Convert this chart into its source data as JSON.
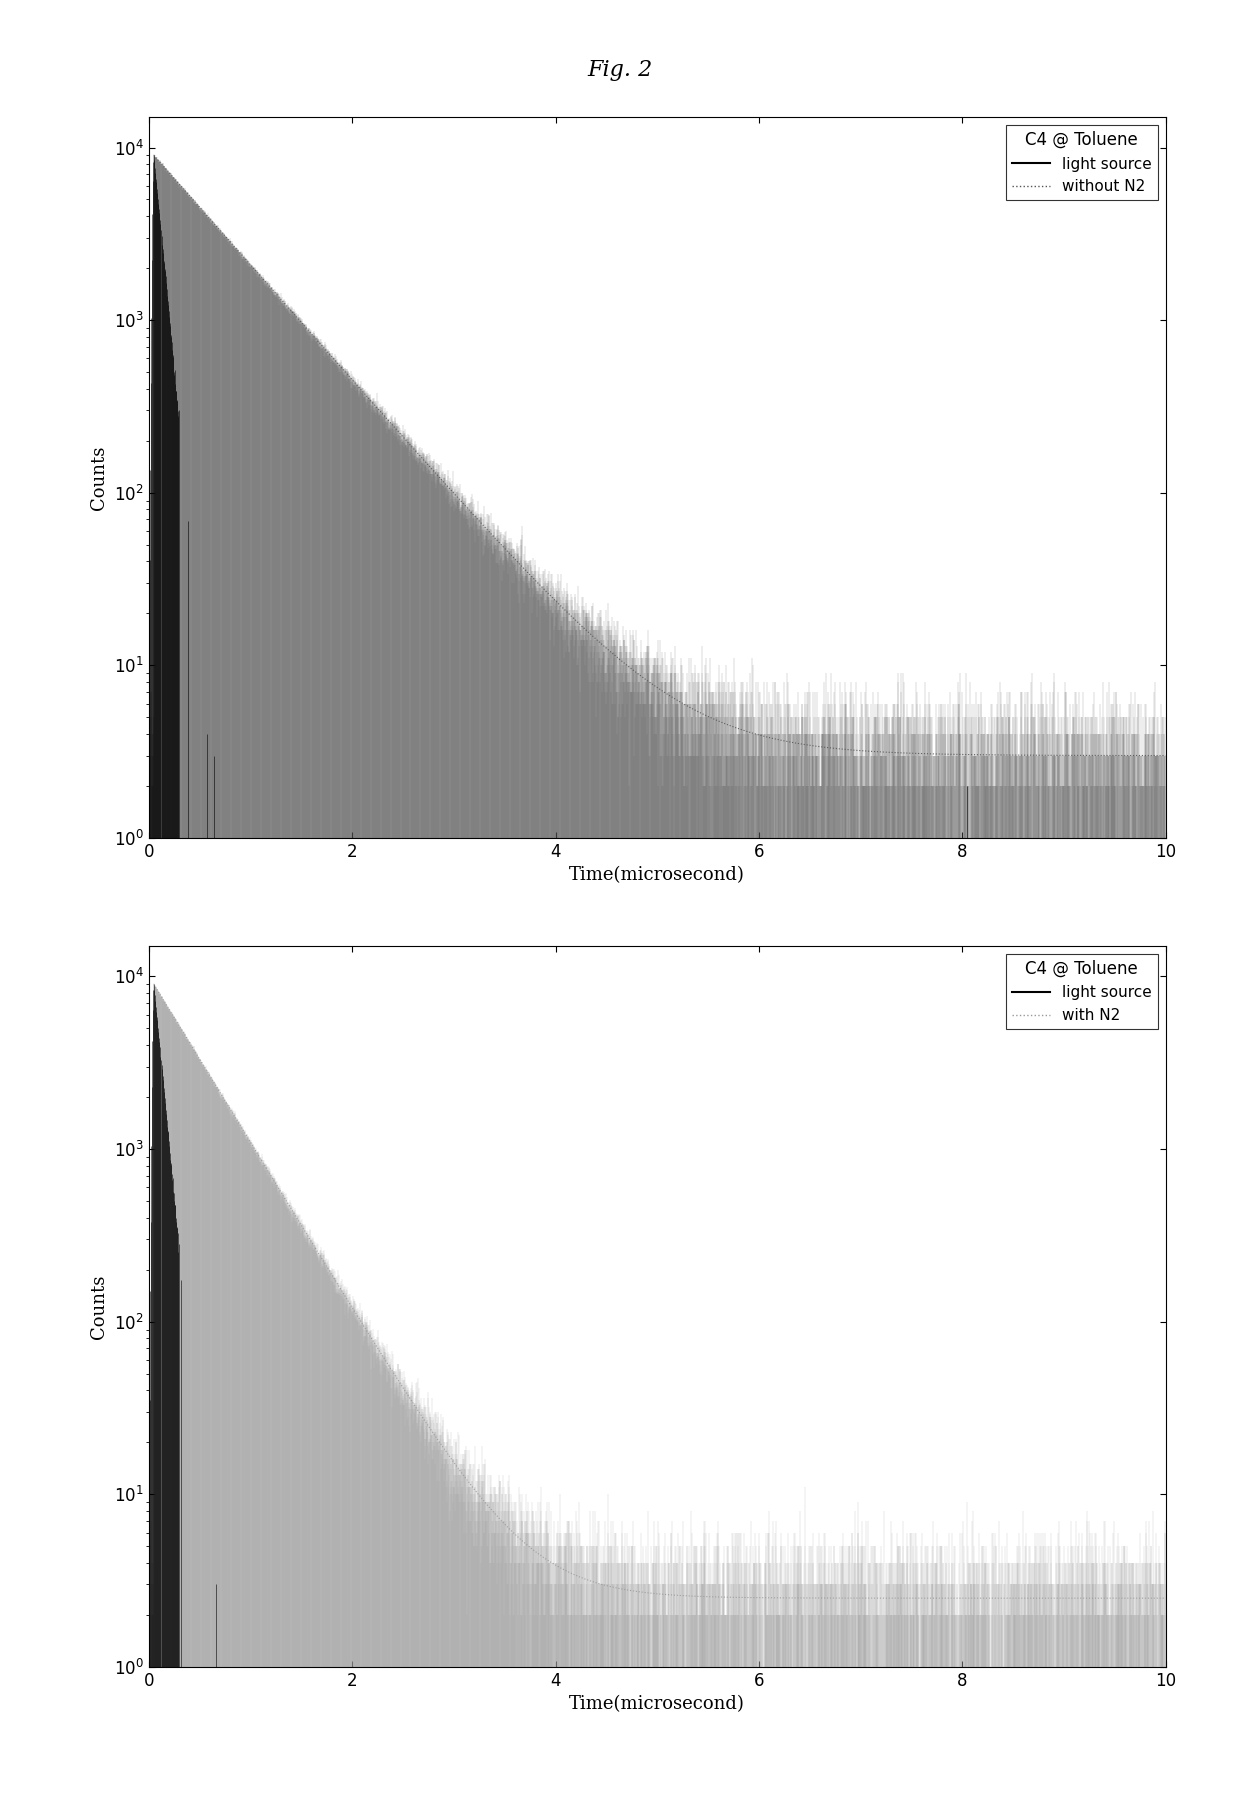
{
  "fig_title": "Fig. 2",
  "fig_title_fontsize": 16,
  "subplot1": {
    "title": "C4 @ Toluene",
    "legend_line1": "light source",
    "legend_line2": "without N2",
    "xlabel": "Time(microsecond)",
    "ylabel": "Counts",
    "xlim": [
      0,
      10
    ],
    "light_source_amplitude": 9000,
    "light_source_tau": 0.07,
    "signal_amplitude": 9000,
    "signal_tau": 0.65,
    "noise_floor": 3.0
  },
  "subplot2": {
    "title": "C4 @ Toluene",
    "legend_line1": "light source",
    "legend_line2": "with N2",
    "xlabel": "Time(microsecond)",
    "ylabel": "Counts",
    "xlim": [
      0,
      10
    ],
    "light_source_amplitude": 9000,
    "light_source_tau": 0.07,
    "signal_amplitude": 9000,
    "signal_tau": 0.45,
    "noise_floor": 2.5
  },
  "n_points": 6000,
  "n_ls_points": 2000,
  "black_color": "#000000",
  "gray1_color": "#555555",
  "gray2_color": "#999999",
  "background_color": "#ffffff"
}
